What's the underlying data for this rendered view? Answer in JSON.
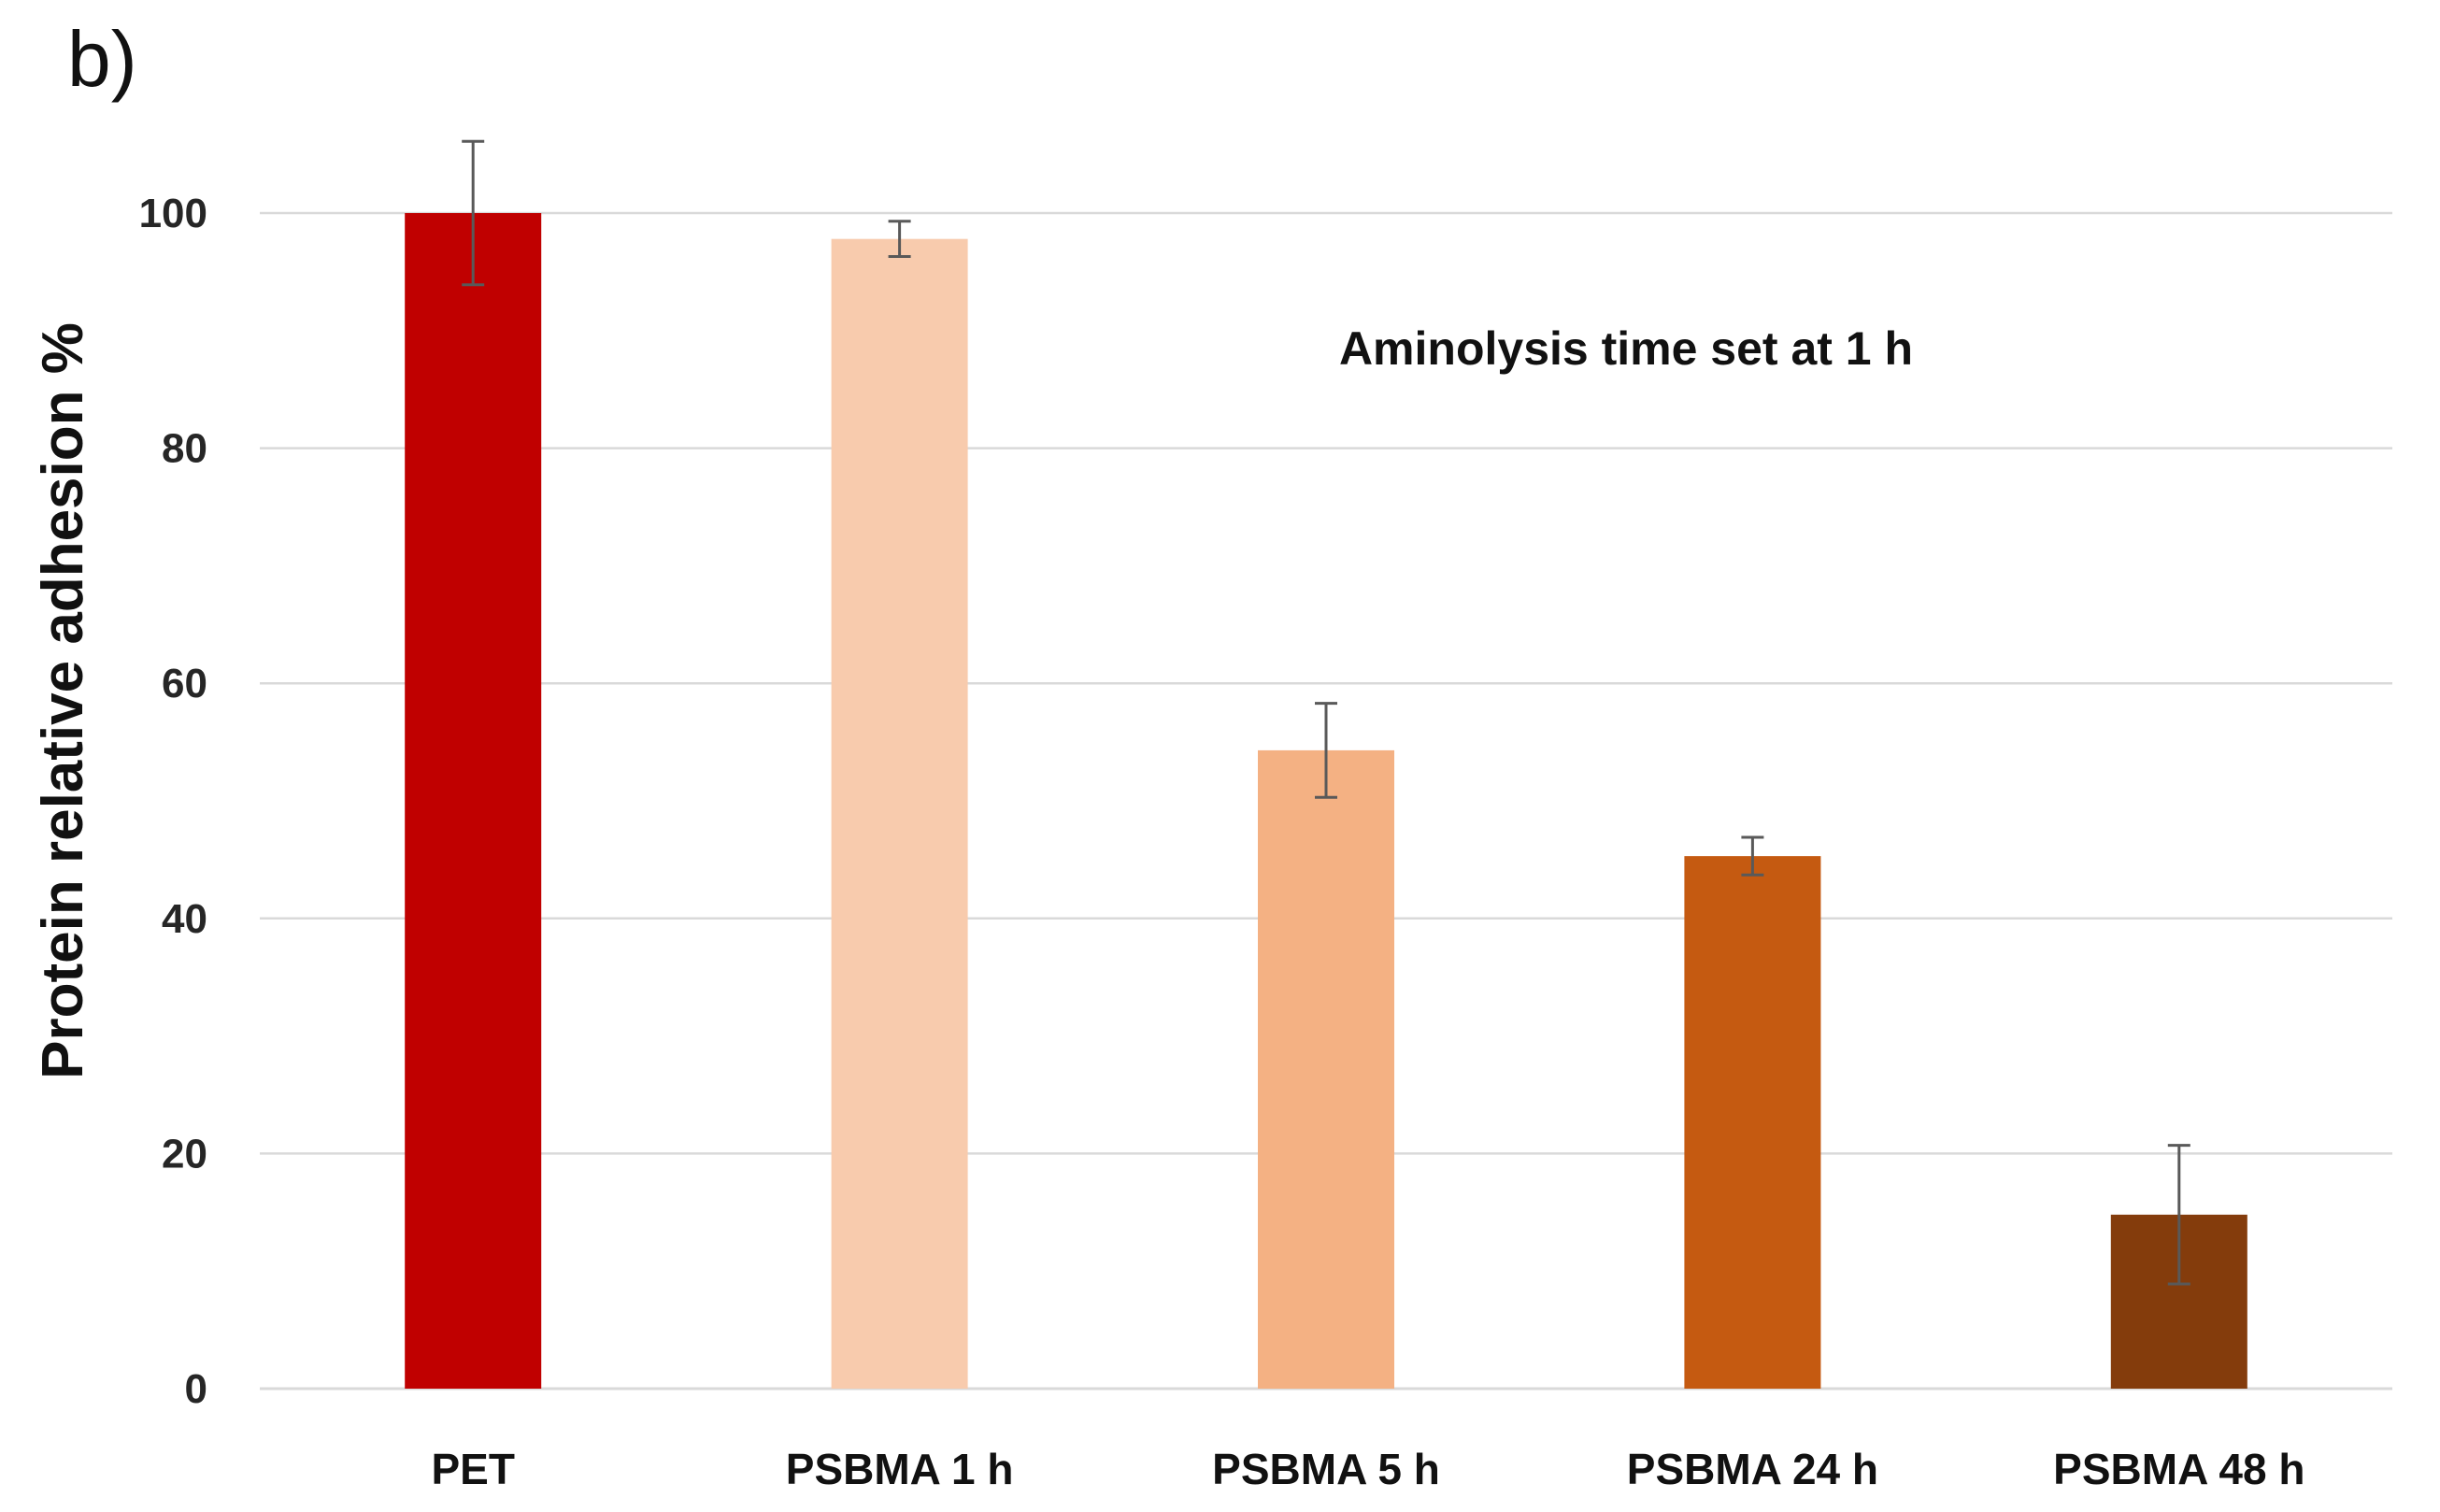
{
  "panel_label": "b)",
  "chart_data": {
    "type": "bar",
    "title": "",
    "xlabel": "",
    "ylabel": "Protein relative adhesion  %",
    "ylim": [
      0,
      100
    ],
    "yticks": [
      0,
      20,
      40,
      60,
      80,
      100
    ],
    "grid": true,
    "annotation": "Aminolysis time set at 1 h",
    "categories": [
      "PET",
      "PSBMA 1 h",
      "PSBMA 5 h",
      "PSBMA 24 h",
      "PSBMA 48 h"
    ],
    "values": [
      100,
      97.8,
      54.3,
      45.3,
      14.8
    ],
    "errors": [
      6.1,
      1.5,
      4.0,
      1.6,
      5.9
    ],
    "colors": [
      "#c00000",
      "#f8cbad",
      "#f4b183",
      "#c55a11",
      "#843c0c"
    ],
    "error_color": "#595959",
    "grid_color": "#d9d9d9"
  }
}
